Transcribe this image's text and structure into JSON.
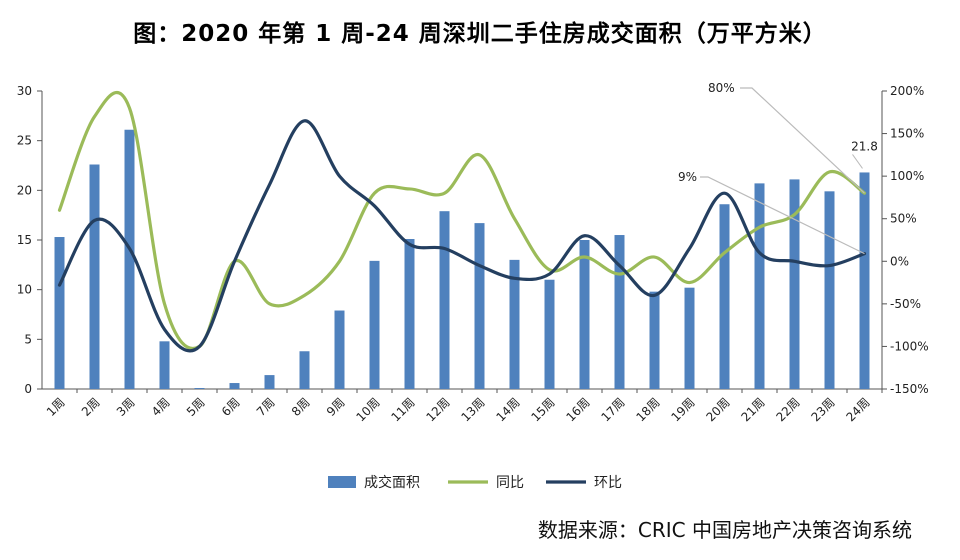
{
  "title": "图：2020 年第 1 周-24 周深圳二手住房成交面积（万平方米）",
  "source": "数据来源：CRIC 中国房地产决策咨询系统",
  "colors": {
    "bar": "#4f81bd",
    "yoy": "#9bbb59",
    "mom": "#243f60",
    "axis": "#555555",
    "leader": "#bbbbbb"
  },
  "chart_data": {
    "type": "bar",
    "categories": [
      "1周",
      "2周",
      "3周",
      "4周",
      "5周",
      "6周",
      "7周",
      "8周",
      "9周",
      "10周",
      "11周",
      "12周",
      "13周",
      "14周",
      "15周",
      "16周",
      "17周",
      "18周",
      "19周",
      "20周",
      "21周",
      "22周",
      "23周",
      "24周"
    ],
    "series": [
      {
        "name": "成交面积",
        "type": "bar",
        "axis": "left",
        "values": [
          15.3,
          22.6,
          26.1,
          4.8,
          0.1,
          0.6,
          1.4,
          3.8,
          7.9,
          12.9,
          15.1,
          17.9,
          16.7,
          13.0,
          11.0,
          15.0,
          15.5,
          9.8,
          10.2,
          18.6,
          20.7,
          21.1,
          19.9,
          21.8
        ]
      },
      {
        "name": "同比",
        "type": "line",
        "axis": "right",
        "values": [
          0.6,
          1.7,
          1.8,
          -0.5,
          -1.0,
          0.0,
          -0.5,
          -0.4,
          0.0,
          0.8,
          0.85,
          0.8,
          1.25,
          0.5,
          -0.1,
          0.05,
          -0.15,
          0.05,
          -0.25,
          0.1,
          0.4,
          0.55,
          1.05,
          0.8
        ]
      },
      {
        "name": "环比",
        "type": "line",
        "axis": "right",
        "values": [
          -0.28,
          0.48,
          0.15,
          -0.8,
          -1.0,
          0.0,
          0.9,
          1.65,
          1.0,
          0.65,
          0.2,
          0.15,
          -0.05,
          -0.2,
          -0.15,
          0.3,
          -0.05,
          -0.4,
          0.15,
          0.8,
          0.1,
          0.0,
          -0.05,
          0.09
        ]
      }
    ],
    "y_left": {
      "min": 0,
      "max": 30,
      "ticks": [
        "0",
        "5",
        "10",
        "15",
        "20",
        "25",
        "30"
      ]
    },
    "y_right": {
      "min": -1.5,
      "max": 2.0,
      "ticks": [
        "-150%",
        "-100%",
        "-50%",
        "0%",
        "50%",
        "100%",
        "150%",
        "200%"
      ]
    },
    "annotations": [
      {
        "text": "80%",
        "series": "同比",
        "index": 23
      },
      {
        "text": "9%",
        "series": "环比",
        "index": 23
      },
      {
        "text": "21.8",
        "series": "成交面积",
        "index": 23
      }
    ],
    "legend": {
      "position": "bottom",
      "items": [
        "成交面积",
        "同比",
        "环比"
      ]
    },
    "grid": false
  }
}
